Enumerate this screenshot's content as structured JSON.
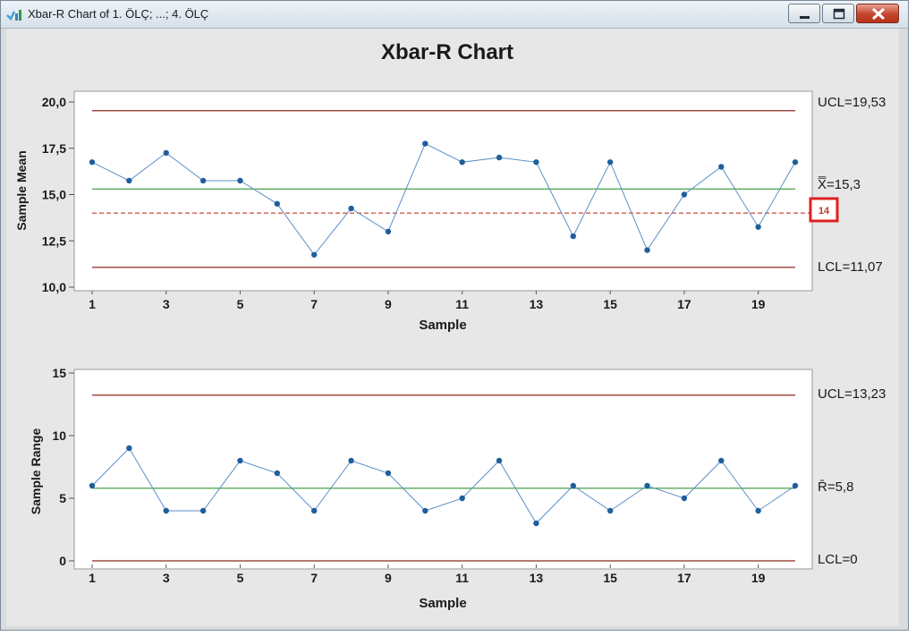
{
  "window": {
    "title": "Xbar-R Chart of 1. ÖLÇ; ...; 4. ÖLÇ",
    "icon": "minitab-chart-icon",
    "controls": [
      "minimize-icon",
      "maximize-icon",
      "close-icon"
    ]
  },
  "chart_title": "Xbar-R Chart",
  "colors": {
    "plot_background": "#ffffff",
    "panel_background": "#e7e7e7",
    "data_line": "#5b8fc9",
    "data_point": "#1f5e9c",
    "control_limit": "#8b2a1e",
    "center_line": "#5aa85a",
    "reference_line": "#c0392b",
    "highlight_box": "#e02020"
  },
  "chart_data": [
    {
      "type": "line",
      "name": "xbar",
      "ylabel": "Sample Mean",
      "xlabel": "Sample",
      "x": [
        1,
        2,
        3,
        4,
        5,
        6,
        7,
        8,
        9,
        10,
        11,
        12,
        13,
        14,
        15,
        16,
        17,
        18,
        19,
        20
      ],
      "values": [
        16.75,
        15.75,
        17.25,
        15.75,
        15.75,
        14.5,
        11.75,
        14.25,
        13.0,
        17.75,
        16.75,
        17.0,
        16.75,
        12.75,
        16.75,
        12.0,
        15.0,
        16.5,
        13.25,
        16.75
      ],
      "ylim": [
        10,
        20
      ],
      "yticks": [
        10,
        12.5,
        15,
        17.5,
        20
      ],
      "ytick_labels": [
        "10,0",
        "12,5",
        "15,0",
        "17,5",
        "20,0"
      ],
      "xticks": [
        1,
        3,
        5,
        7,
        9,
        11,
        13,
        15,
        17,
        19
      ],
      "xtick_labels": [
        "1",
        "3",
        "5",
        "7",
        "9",
        "11",
        "13",
        "15",
        "17",
        "19"
      ],
      "ucl": 19.53,
      "center": 15.3,
      "lcl": 11.07,
      "reference": 14,
      "ucl_label": "UCL=19,53",
      "center_label": "X̿=15,3",
      "lcl_label": "LCL=11,07",
      "reference_label": "14",
      "grid": false
    },
    {
      "type": "line",
      "name": "range",
      "ylabel": "Sample Range",
      "xlabel": "Sample",
      "x": [
        1,
        2,
        3,
        4,
        5,
        6,
        7,
        8,
        9,
        10,
        11,
        12,
        13,
        14,
        15,
        16,
        17,
        18,
        19,
        20
      ],
      "values": [
        6,
        9,
        4,
        4,
        8,
        7,
        4,
        8,
        7,
        4,
        5,
        8,
        3,
        6,
        4,
        6,
        5,
        8,
        4,
        6
      ],
      "ylim": [
        0,
        15
      ],
      "yticks": [
        0,
        5,
        10,
        15
      ],
      "ytick_labels": [
        "0",
        "5",
        "10",
        "15"
      ],
      "xticks": [
        1,
        3,
        5,
        7,
        9,
        11,
        13,
        15,
        17,
        19
      ],
      "xtick_labels": [
        "1",
        "3",
        "5",
        "7",
        "9",
        "11",
        "13",
        "15",
        "17",
        "19"
      ],
      "ucl": 13.23,
      "center": 5.8,
      "lcl": 0,
      "ucl_label": "UCL=13,23",
      "center_label": "R̄=5,8",
      "lcl_label": "LCL=0",
      "grid": false
    }
  ]
}
